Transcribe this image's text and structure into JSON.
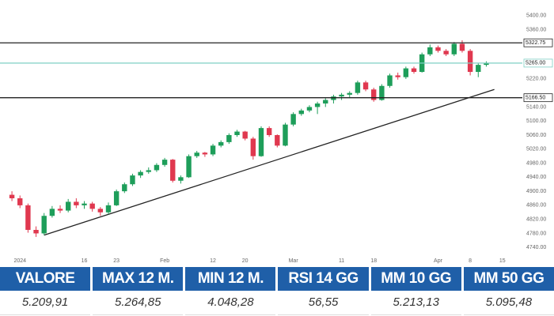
{
  "chart_data": {
    "type": "candlestick",
    "up_color": "#1e9e5a",
    "down_color": "#e0384f",
    "ylim": [
      4700,
      5420
    ],
    "xlim": [
      -0.5,
      62.5
    ],
    "yticks": [
      {
        "value": 5400,
        "label": "5400.00"
      },
      {
        "value": 5360,
        "label": "5360.00"
      },
      {
        "value": 5220,
        "label": "5220.00"
      },
      {
        "value": 5140,
        "label": "5140.00"
      },
      {
        "value": 5100,
        "label": "5100.00"
      },
      {
        "value": 5060,
        "label": "5060.00"
      },
      {
        "value": 5020,
        "label": "5020.00"
      },
      {
        "value": 4980,
        "label": "4980.00"
      },
      {
        "value": 4940,
        "label": "4940.00"
      },
      {
        "value": 4900,
        "label": "4900.00"
      },
      {
        "value": 4860,
        "label": "4860.00"
      },
      {
        "value": 4820,
        "label": "4820.00"
      },
      {
        "value": 4780,
        "label": "4780.00"
      },
      {
        "value": 4740,
        "label": "4740.00"
      }
    ],
    "xticks": [
      {
        "value": 1,
        "label": "2024"
      },
      {
        "value": 9,
        "label": "16"
      },
      {
        "value": 13,
        "label": "23"
      },
      {
        "value": 19,
        "label": "Feb"
      },
      {
        "value": 25,
        "label": "12"
      },
      {
        "value": 29,
        "label": "20"
      },
      {
        "value": 35,
        "label": "Mar"
      },
      {
        "value": 41,
        "label": "11"
      },
      {
        "value": 45,
        "label": "18"
      },
      {
        "value": 53,
        "label": "Apr"
      },
      {
        "value": 57,
        "label": "8"
      },
      {
        "value": 61,
        "label": "15"
      }
    ],
    "levels": [
      {
        "value": 5322.75,
        "label": "5322.75",
        "color": "#222222"
      },
      {
        "value": 5166.5,
        "label": "5166.50",
        "color": "#222222"
      },
      {
        "value": 5265,
        "label": "5265.00",
        "color": "#7fcfc4"
      }
    ],
    "trendline": [
      [
        4,
        4775
      ],
      [
        60,
        5190
      ]
    ],
    "ohlc": [
      [
        4890,
        4900,
        4872,
        4880
      ],
      [
        4880,
        4888,
        4852,
        4860
      ],
      [
        4860,
        4865,
        4782,
        4790
      ],
      [
        4790,
        4800,
        4770,
        4780
      ],
      [
        4780,
        4838,
        4775,
        4830
      ],
      [
        4830,
        4858,
        4825,
        4850
      ],
      [
        4850,
        4860,
        4838,
        4845
      ],
      [
        4845,
        4878,
        4840,
        4870
      ],
      [
        4870,
        4880,
        4852,
        4860
      ],
      [
        4860,
        4872,
        4850,
        4865
      ],
      [
        4865,
        4870,
        4842,
        4850
      ],
      [
        4850,
        4855,
        4830,
        4840
      ],
      [
        4840,
        4868,
        4835,
        4860
      ],
      [
        4860,
        4905,
        4858,
        4900
      ],
      [
        4900,
        4925,
        4895,
        4920
      ],
      [
        4920,
        4950,
        4915,
        4945
      ],
      [
        4945,
        4960,
        4938,
        4955
      ],
      [
        4955,
        4968,
        4950,
        4960
      ],
      [
        4960,
        4980,
        4955,
        4975
      ],
      [
        4975,
        4995,
        4970,
        4990
      ],
      [
        4990,
        4992,
        4925,
        4930
      ],
      [
        4930,
        4945,
        4922,
        4940
      ],
      [
        4940,
        5005,
        4938,
        5000
      ],
      [
        5000,
        5015,
        4995,
        5010
      ],
      [
        5010,
        5012,
        4998,
        5005
      ],
      [
        5005,
        5035,
        5000,
        5030
      ],
      [
        5030,
        5045,
        5025,
        5040
      ],
      [
        5040,
        5065,
        5035,
        5060
      ],
      [
        5060,
        5075,
        5055,
        5070
      ],
      [
        5070,
        5072,
        5045,
        5050
      ],
      [
        5050,
        5055,
        4990,
        5000
      ],
      [
        5000,
        5085,
        4998,
        5080
      ],
      [
        5080,
        5085,
        5055,
        5060
      ],
      [
        5060,
        5062,
        5025,
        5030
      ],
      [
        5030,
        5095,
        5028,
        5090
      ],
      [
        5090,
        5125,
        5085,
        5120
      ],
      [
        5120,
        5135,
        5115,
        5130
      ],
      [
        5130,
        5145,
        5125,
        5140
      ],
      [
        5140,
        5155,
        5120,
        5150
      ],
      [
        5150,
        5165,
        5140,
        5160
      ],
      [
        5160,
        5175,
        5150,
        5170
      ],
      [
        5170,
        5180,
        5160,
        5175
      ],
      [
        5175,
        5185,
        5165,
        5180
      ],
      [
        5180,
        5215,
        5175,
        5210
      ],
      [
        5210,
        5215,
        5185,
        5190
      ],
      [
        5190,
        5195,
        5155,
        5160
      ],
      [
        5160,
        5205,
        5158,
        5200
      ],
      [
        5200,
        5235,
        5195,
        5230
      ],
      [
        5230,
        5238,
        5218,
        5225
      ],
      [
        5225,
        5255,
        5220,
        5250
      ],
      [
        5250,
        5255,
        5235,
        5240
      ],
      [
        5240,
        5295,
        5238,
        5290
      ],
      [
        5290,
        5318,
        5285,
        5310
      ],
      [
        5310,
        5315,
        5295,
        5300
      ],
      [
        5300,
        5305,
        5285,
        5290
      ],
      [
        5290,
        5325,
        5285,
        5320
      ],
      [
        5320,
        5330,
        5295,
        5300
      ],
      [
        5300,
        5305,
        5230,
        5240
      ],
      [
        5240,
        5265,
        5225,
        5260
      ],
      [
        5260,
        5270,
        5255,
        5265
      ]
    ]
  },
  "table": {
    "headers": [
      "VALORE",
      "MAX 12 M.",
      "MIN 12 M.",
      "RSI 14 GG",
      "MM 10 GG",
      "MM 50 GG"
    ],
    "values": [
      "5.209,91",
      "5.264,85",
      "4.048,28",
      "56,55",
      "5.213,13",
      "5.095,48"
    ]
  }
}
